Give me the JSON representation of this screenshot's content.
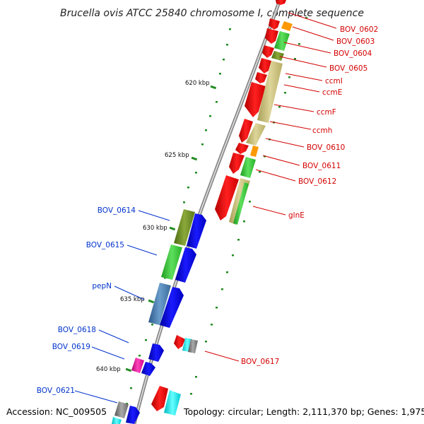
{
  "title": "Brucella ovis ATCC 25840 chromosome I, complete sequence",
  "footer": {
    "accession": "Accession: NC_009505",
    "topology": "Topology: circular; Length: 2,111,370 bp; Genes: 1,975"
  },
  "ruler_labels": [
    "620 kbp",
    "625 kbp",
    "630 kbp",
    "635 kbp",
    "640 kbp"
  ],
  "colors": {
    "red": "#ff0000",
    "blue": "#0000ee",
    "green": "#33cc33",
    "olive": "#6b8e23",
    "khaki": "#c8c07a",
    "orange": "#ff9900",
    "steel": "#4a7fb5",
    "magenta": "#ee1199",
    "cyan": "#00e5ee",
    "gray": "#808080",
    "label_red": "#d40000",
    "label_blue": "#0033cc"
  },
  "gene_labels_right": [
    "BOV_0602",
    "BOV_0603",
    "BOV_0604",
    "BOV_0605",
    "ccmI",
    "ccmE",
    "ccmF",
    "ccmh",
    "BOV_0610",
    "BOV_0611",
    "BOV_0612",
    "glnE",
    "BOV_0617"
  ],
  "gene_labels_left": [
    "BOV_0614",
    "BOV_0615",
    "pepN",
    "BOV_0618",
    "BOV_0619",
    "BOV_0621"
  ]
}
